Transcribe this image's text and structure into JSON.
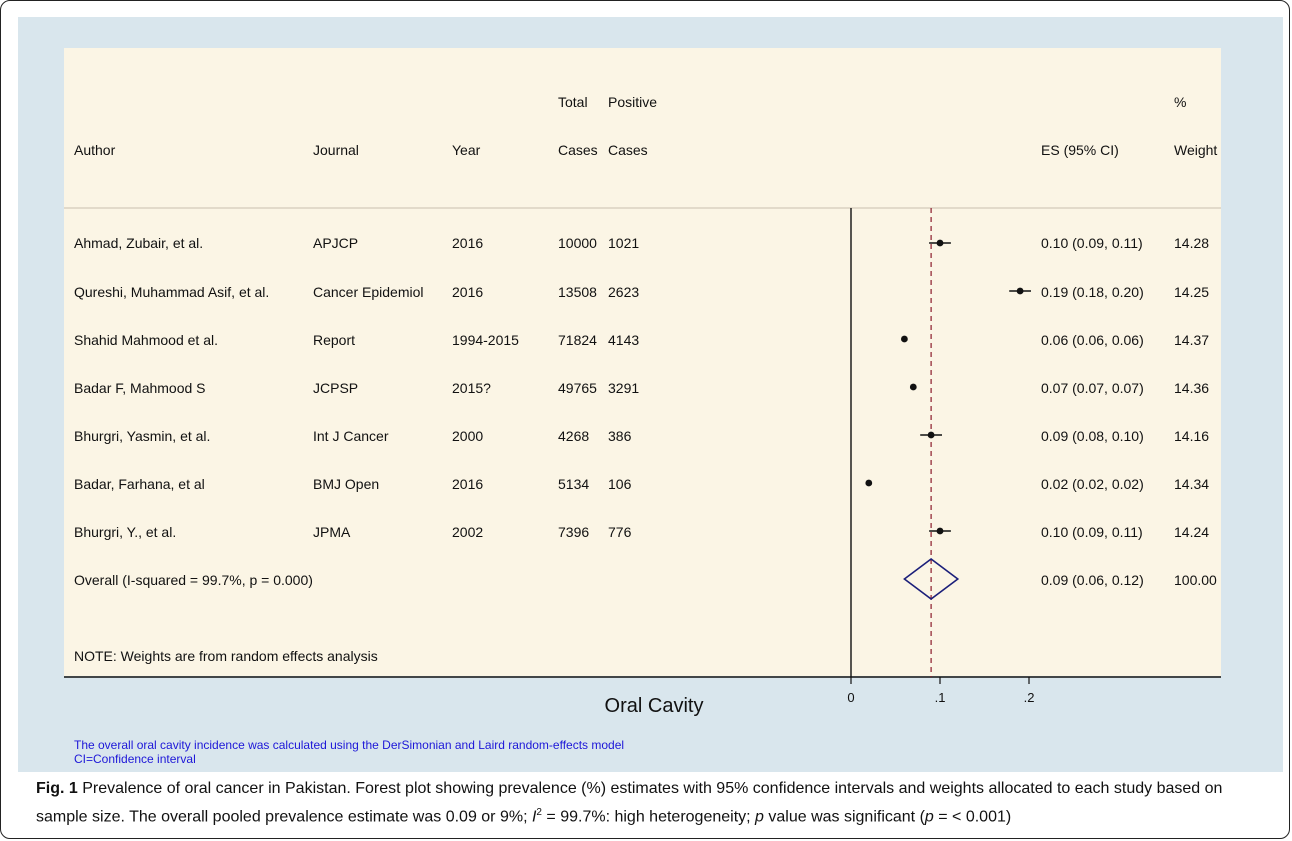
{
  "headers": {
    "author": "Author",
    "journal": "Journal",
    "year": "Year",
    "total_top": "Total",
    "total_bottom": "Cases",
    "positive_top": "Positive",
    "positive_bottom": "Cases",
    "es": "ES (95% CI)",
    "weight_top": "%",
    "weight_bottom": "Weight"
  },
  "studies": [
    {
      "author": "Ahmad, Zubair, et al.",
      "journal": "APJCP",
      "year": "2016",
      "total": "10000",
      "positive": "1021",
      "es_text": "0.10 (0.09, 0.11)",
      "weight": "14.28"
    },
    {
      "author": "Qureshi, Muhammad Asif, et al.",
      "journal": "Cancer Epidemiol",
      "year": "2016",
      "total": "13508",
      "positive": "2623",
      "es_text": "0.19 (0.18, 0.20)",
      "weight": "14.25"
    },
    {
      "author": "Shahid Mahmood et al.",
      "journal": "Report",
      "year": "1994-2015",
      "total": "71824",
      "positive": "4143",
      "es_text": "0.06 (0.06, 0.06)",
      "weight": "14.37"
    },
    {
      "author": "Badar F, Mahmood S",
      "journal": "JCPSP",
      "year": "2015?",
      "total": "49765",
      "positive": "3291",
      "es_text": "0.07 (0.07, 0.07)",
      "weight": "14.36"
    },
    {
      "author": "Bhurgri, Yasmin, et al.",
      "journal": "Int J Cancer",
      "year": "2000",
      "total": "4268",
      "positive": "386",
      "es_text": "0.09 (0.08, 0.10)",
      "weight": "14.16"
    },
    {
      "author": "Badar, Farhana, et al",
      "journal": "BMJ Open",
      "year": "2016",
      "total": "5134",
      "positive": "106",
      "es_text": "0.02 (0.02, 0.02)",
      "weight": "14.34"
    },
    {
      "author": "Bhurgri, Y., et al.",
      "journal": "JPMA",
      "year": "2002",
      "total": "7396",
      "positive": "776",
      "es_text": "0.10 (0.09, 0.11)",
      "weight": "14.24"
    }
  ],
  "overall": {
    "label": "Overall  (I-squared = 99.7%, p = 0.000)",
    "es_text": "0.09 (0.06, 0.12)",
    "weight": "100.00"
  },
  "note": "NOTE: Weights are from random effects analysis",
  "axis_title": "Oral Cavity",
  "footnotes": [
    "The overall oral cavity incidence was calculated using the DerSimonian and Laird random-effects model",
    "CI=Confidence interval"
  ],
  "caption": {
    "label": "Fig. 1",
    "text_a": " Prevalence of oral cancer in Pakistan. Forest plot showing prevalence (%) estimates with 95% confidence intervals and weights allocated to each study based on sample size. The overall pooled prevalence estimate was 0.09 or 9%; ",
    "i2_symbol": "I",
    "i2_exp": "2",
    "text_b": " = 99.7%: high heterogeneity; ",
    "p_symbol": "p",
    "text_c": " value was significant (",
    "p_symbol2": "p",
    "text_d": " = < 0.001)"
  },
  "colors": {
    "plot_bg": "#d9e6ed",
    "panel_bg": "#fbf5e5",
    "diamond": "#1b1f7a",
    "ref_line": "#8b1a2b",
    "footnote_text": "#1d17d8"
  },
  "chart_data": {
    "type": "forest",
    "xlabel": "Oral Cavity",
    "xlim": [
      0,
      0.2
    ],
    "xticks": [
      0,
      0.1,
      0.2
    ],
    "xtick_labels": [
      "0",
      ".1",
      ".2"
    ],
    "reference_line": 0.09,
    "series": [
      {
        "name": "Ahmad, Zubair, et al.",
        "es": 0.1,
        "lo": 0.09,
        "hi": 0.11,
        "weight": 14.28
      },
      {
        "name": "Qureshi, Muhammad Asif, et al.",
        "es": 0.19,
        "lo": 0.18,
        "hi": 0.2,
        "weight": 14.25
      },
      {
        "name": "Shahid Mahmood et al.",
        "es": 0.06,
        "lo": 0.06,
        "hi": 0.06,
        "weight": 14.37
      },
      {
        "name": "Badar F, Mahmood S",
        "es": 0.07,
        "lo": 0.07,
        "hi": 0.07,
        "weight": 14.36
      },
      {
        "name": "Bhurgri, Yasmin, et al.",
        "es": 0.09,
        "lo": 0.08,
        "hi": 0.1,
        "weight": 14.16
      },
      {
        "name": "Badar, Farhana, et al",
        "es": 0.02,
        "lo": 0.02,
        "hi": 0.02,
        "weight": 14.34
      },
      {
        "name": "Bhurgri, Y., et al.",
        "es": 0.1,
        "lo": 0.09,
        "hi": 0.11,
        "weight": 14.24
      }
    ],
    "overall": {
      "es": 0.09,
      "lo": 0.06,
      "hi": 0.12,
      "weight": 100.0
    }
  }
}
